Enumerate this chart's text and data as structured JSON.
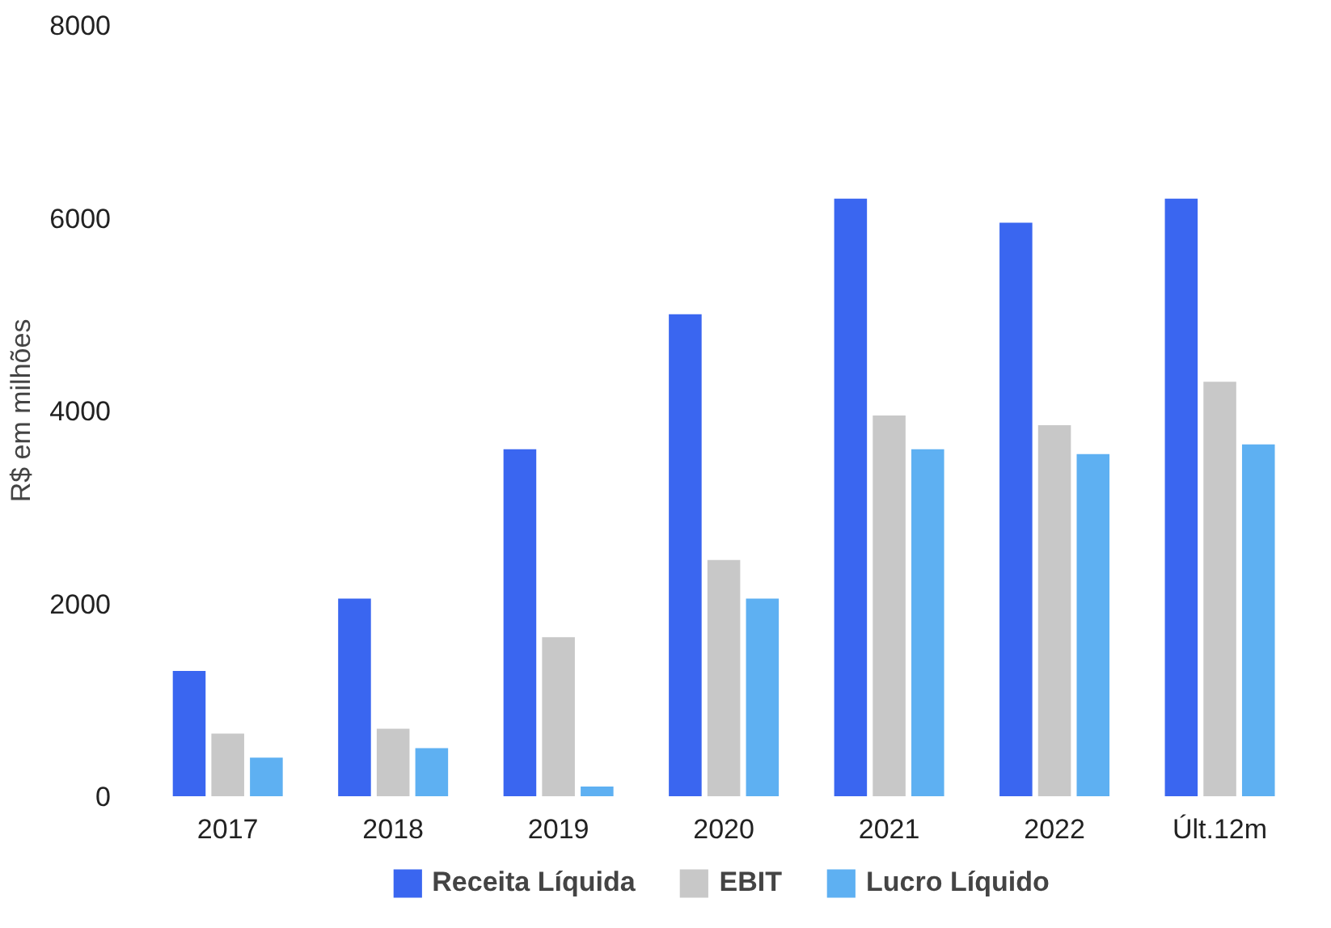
{
  "chart_data": {
    "type": "bar",
    "ylabel": "R$ em milhões",
    "categories": [
      "2017",
      "2018",
      "2019",
      "2020",
      "2021",
      "2022",
      "Últ.12m"
    ],
    "series": [
      {
        "name": "Receita Líquida",
        "color": "#3a66f0",
        "values": [
          1300,
          2050,
          3600,
          5000,
          6200,
          5950,
          6200
        ]
      },
      {
        "name": "EBIT",
        "color": "#c8c8c8",
        "values": [
          650,
          700,
          1650,
          2450,
          3950,
          3850,
          4300
        ]
      },
      {
        "name": "Lucro Líquido",
        "color": "#5eb0f2",
        "values": [
          400,
          500,
          100,
          2050,
          3600,
          3550,
          3650
        ]
      }
    ],
    "ylim": [
      0,
      8000
    ],
    "yticks": [
      0,
      2000,
      4000,
      6000,
      8000
    ],
    "grid": false,
    "legend": "bottom"
  }
}
